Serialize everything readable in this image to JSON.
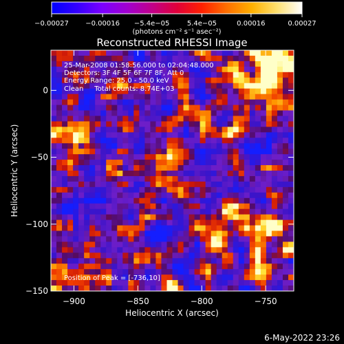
{
  "colorbar": {
    "tick_labels": [
      "-0.00027",
      "-0.00016",
      "-5.4e-05",
      "5.4e-05",
      "0.00016",
      "0.00027"
    ],
    "tick_values": [
      -0.00027,
      -0.00016,
      -5.4e-05,
      5.4e-05,
      0.00016,
      0.00027
    ],
    "range": [
      -0.00027,
      0.00027
    ],
    "unit_label": "(photons cm⁻² s⁻¹ asec⁻²)",
    "colors": [
      "#0000ff",
      "#3300ff",
      "#7a00ff",
      "#a000d0",
      "#c0008a",
      "#e0003a",
      "#ff2000",
      "#ff7000",
      "#ffb000",
      "#ffe070",
      "#ffffff"
    ]
  },
  "chart_data": {
    "type": "heatmap",
    "title": "Reconstructed RHESSI Image",
    "xlabel": "Heliocentric X (arcsec)",
    "ylabel": "Heliocentric Y (arcsec)",
    "xlim": [
      -918,
      -728
    ],
    "ylim": [
      -150,
      30
    ],
    "x_ticks": [
      -900,
      -850,
      -800,
      -750
    ],
    "x_tick_labels": [
      "-900",
      "-850",
      "-800",
      "-750"
    ],
    "y_ticks": [
      -150,
      -100,
      -50,
      0
    ],
    "y_tick_labels": [
      "-150",
      "-100",
      "-50",
      "0"
    ],
    "grid": false,
    "annotations": [
      "25-Mar-2008 01:58:56.000 to 02:04:48.000",
      "Detectors: 3F 4F 5F 6F 7F 8F, Att 0",
      "Energy Range: 25.0 - 50.0 keV",
      "Clean     Total counts: 8.74E+03"
    ],
    "peak_label": "Position of Peak = [-736,10]",
    "peak_position": [
      -736,
      10
    ],
    "image_description": "Noisy CLEAN reconstruction: purple/blue background with scattered red-orange-yellow hot patches; brightest region near top-right."
  },
  "footer": {
    "timestamp": "6-May-2022 23:26"
  }
}
